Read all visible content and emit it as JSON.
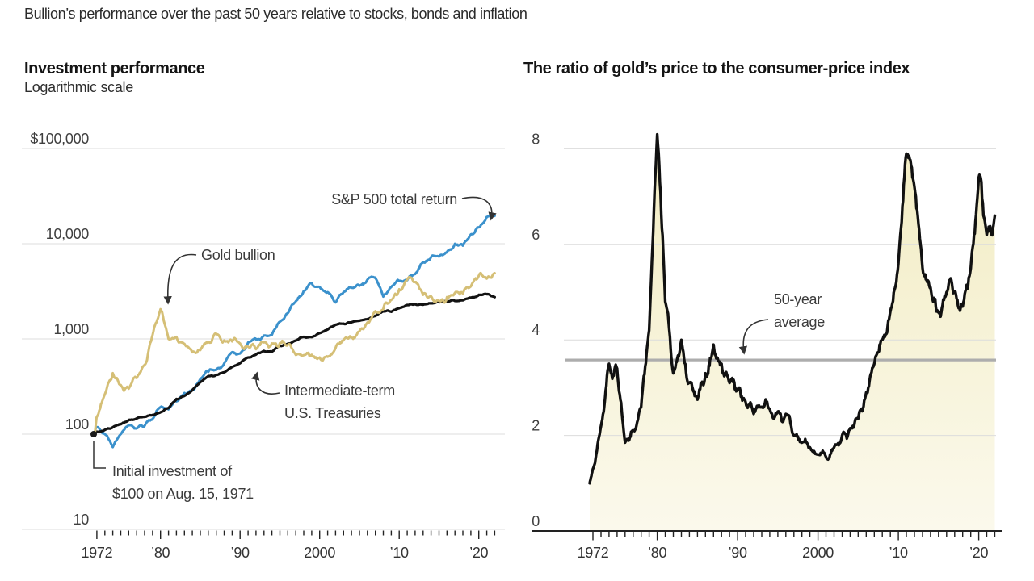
{
  "page": {
    "title": "Bullion’s performance over the past 50 years relative to stocks, bonds and inflation"
  },
  "left_chart": {
    "title": "Investment performance",
    "subtitle": "Logarithmic scale"
  },
  "right_chart": {
    "title": "The ratio of gold’s price to the consumer-price index"
  },
  "colors": {
    "sp500": "#3B91CC",
    "gold": "#D5BF76",
    "treasuries": "#121212",
    "ratio_line": "#111111",
    "area_top": "#F2ECC2",
    "area_bottom": "#FBF9EC",
    "average_line": "#ADADAD",
    "gridline": "#DCDCDC",
    "axis": "#222222",
    "tick_label": "#333333",
    "annotation": "#3C3C3C"
  },
  "chart_data": [
    {
      "type": "line",
      "title": "Investment performance",
      "subtitle": "Logarithmic scale",
      "scale": "log",
      "ylim": [
        10,
        100000
      ],
      "y_ticks": [
        {
          "value": 100000,
          "label": "$100,000"
        },
        {
          "value": 10000,
          "label": "10,000"
        },
        {
          "value": 1000,
          "label": "1,000"
        },
        {
          "value": 100,
          "label": "100"
        },
        {
          "value": 10,
          "label": "10"
        }
      ],
      "x_label_years": [
        1972,
        1980,
        1990,
        2000,
        2010,
        2020
      ],
      "x_label_ticks": [
        "1972",
        "’80",
        "’90",
        "2000",
        "’10",
        "’20"
      ],
      "x": [
        1971.6,
        1972,
        1973,
        1974,
        1975,
        1976,
        1977,
        1978,
        1979,
        1980,
        1981,
        1982,
        1983,
        1984,
        1985,
        1986,
        1987,
        1988,
        1989,
        1990,
        1991,
        1992,
        1993,
        1994,
        1995,
        1996,
        1997,
        1998,
        1999,
        2000,
        2001,
        2002,
        2003,
        2004,
        2005,
        2006,
        2007,
        2008,
        2009,
        2010,
        2011,
        2012,
        2013,
        2014,
        2015,
        2016,
        2017,
        2018,
        2019,
        2020,
        2021,
        2022
      ],
      "series": [
        {
          "id": "sp500",
          "name": "S&P 500 total return",
          "color": "#3B91CC",
          "values": [
            100,
            118,
            100,
            73,
            100,
            124,
            115,
            122,
            145,
            192,
            182,
            221,
            271,
            288,
            379,
            450,
            473,
            551,
            726,
            703,
            918,
            988,
            1088,
            1102,
            1516,
            1864,
            2486,
            3196,
            3869,
            3517,
            3099,
            2414,
            3106,
            3444,
            3614,
            4184,
            4414,
            2781,
            3517,
            4048,
            4132,
            4793,
            6345,
            7214,
            7313,
            8187,
            9975,
            9538,
            12541,
            14846,
            19105,
            19600
          ]
        },
        {
          "id": "gold",
          "name": "Gold bullion",
          "color": "#D5BF76",
          "values": [
            100,
            152,
            262,
            437,
            328,
            300,
            389,
            533,
            1100,
            2050,
            1000,
            1050,
            890,
            723,
            764,
            918,
            1135,
            963,
            941,
            897,
            830,
            781,
            917,
            898,
            906,
            864,
            678,
            674,
            681,
            639,
            649,
            804,
            975,
            1027,
            1204,
            1490,
            1955,
            2066,
            2570,
            3329,
            4200,
            3950,
            2900,
            2800,
            2500,
            2750,
            3050,
            3000,
            3560,
            4600,
            4300,
            4900
          ]
        },
        {
          "id": "treasuries",
          "name": "Intermediate-term U.S. Treasuries",
          "color": "#121212",
          "values": [
            100,
            106,
            111,
            118,
            127,
            141,
            146,
            152,
            159,
            170,
            188,
            234,
            252,
            291,
            352,
            407,
            419,
            447,
            507,
            556,
            639,
            685,
            747,
            733,
            850,
            890,
            962,
            1050,
            1044,
            1150,
            1253,
            1410,
            1446,
            1492,
            1550,
            1612,
            1745,
            1952,
            1926,
            2100,
            2270,
            2313,
            2286,
            2360,
            2450,
            2478,
            2507,
            2545,
            2706,
            2900,
            2950,
            2750
          ]
        }
      ],
      "annotations": [
        {
          "id": "sp500",
          "lines": [
            "S&P 500 total return"
          ]
        },
        {
          "id": "gold",
          "lines": [
            "Gold bullion"
          ]
        },
        {
          "id": "treasuries",
          "lines": [
            "Intermediate-term",
            "U.S. Treasuries"
          ]
        },
        {
          "id": "initial",
          "lines": [
            "Initial investment of",
            "$100 on Aug. 15, 1971"
          ]
        }
      ]
    },
    {
      "type": "area",
      "title": "The ratio of gold’s price to the consumer-price index",
      "scale": "linear",
      "ylim": [
        0,
        8
      ],
      "y_ticks": [
        {
          "value": 8,
          "label": "8"
        },
        {
          "value": 6,
          "label": "6"
        },
        {
          "value": 4,
          "label": "4"
        },
        {
          "value": 2,
          "label": "2"
        },
        {
          "value": 0,
          "label": "0"
        }
      ],
      "x_label_years": [
        1972,
        1980,
        1990,
        2000,
        2010,
        2020
      ],
      "x_label_ticks": [
        "1972",
        "’80",
        "’90",
        "2000",
        "’10",
        "’20"
      ],
      "average": 3.58,
      "x": [
        1971.6,
        1972,
        1973,
        1974,
        1975,
        1976,
        1977,
        1978,
        1979,
        1980,
        1981,
        1982,
        1983,
        1984,
        1985,
        1986,
        1987,
        1988,
        1989,
        1990,
        1991,
        1992,
        1993,
        1994,
        1995,
        1996,
        1997,
        1998,
        1999,
        2000,
        2001,
        2002,
        2003,
        2004,
        2005,
        2006,
        2007,
        2008,
        2009,
        2010,
        2011,
        2012,
        2013,
        2014,
        2015,
        2016,
        2017,
        2018,
        2019,
        2020,
        2021,
        2022
      ],
      "values": [
        1.0,
        1.3,
        2.2,
        3.5,
        3.4,
        1.85,
        2.1,
        2.6,
        4.2,
        8.3,
        4.8,
        3.3,
        4.0,
        3.1,
        2.75,
        3.3,
        3.9,
        3.5,
        3.1,
        2.95,
        2.7,
        2.45,
        2.6,
        2.55,
        2.5,
        2.45,
        2.0,
        1.85,
        1.75,
        1.6,
        1.55,
        1.75,
        2.0,
        2.15,
        2.35,
        2.9,
        3.5,
        4.0,
        4.6,
        5.6,
        7.9,
        7.2,
        5.5,
        5.1,
        4.6,
        5.0,
        5.0,
        4.7,
        5.5,
        7.4,
        6.2,
        6.6
      ],
      "annotations": [
        {
          "id": "avg",
          "lines": [
            "50-year",
            "average"
          ]
        }
      ]
    }
  ]
}
